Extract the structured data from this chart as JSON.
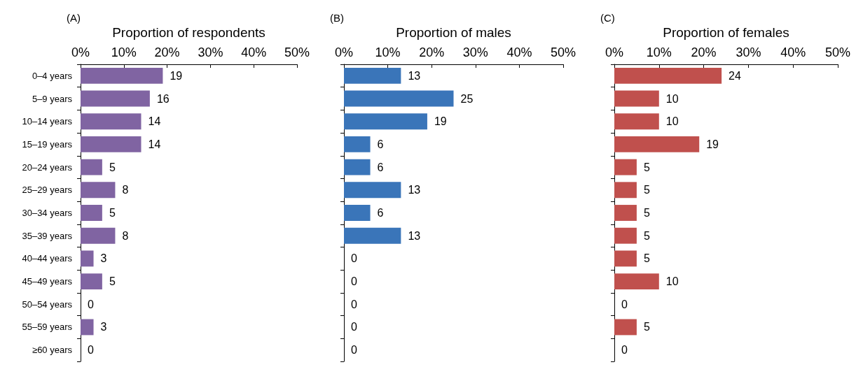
{
  "chart_data": [
    {
      "type": "bar",
      "orientation": "horizontal",
      "xlabel": "Proportion of respondents",
      "annotations": [
        "(A)"
      ],
      "categories": [
        "0–4 years",
        "5–9 years",
        "10–14 years",
        "15–19 years",
        "20–24 years",
        "25–29 years",
        "30–34 years",
        "35–39 years",
        "40–44 years",
        "45–49 years",
        "50–54 years",
        "55–59 years",
        "≥60 years"
      ],
      "values": [
        19,
        16,
        14,
        14,
        5,
        8,
        5,
        8,
        3,
        5,
        0,
        3,
        0
      ],
      "color": "#8064a2",
      "data_labels": true,
      "xlim": [
        0,
        50
      ],
      "xticks": [
        {
          "value": 0,
          "label": "0%"
        },
        {
          "value": 10,
          "label": "10%"
        },
        {
          "value": 20,
          "label": "20%"
        },
        {
          "value": 30,
          "label": "30%"
        },
        {
          "value": 40,
          "label": "40%"
        },
        {
          "value": 50,
          "label": "50%"
        }
      ]
    },
    {
      "type": "bar",
      "orientation": "horizontal",
      "xlabel": "Proportion of males",
      "annotations": [
        "(B)"
      ],
      "categories": [
        null,
        null,
        null,
        null,
        null,
        null,
        null,
        null,
        null,
        null,
        null,
        null,
        null
      ],
      "values": [
        13,
        25,
        19,
        6,
        6,
        13,
        6,
        13,
        0,
        0,
        0,
        0,
        0
      ],
      "color": "#3a75b9",
      "data_labels": true,
      "xlim": [
        0,
        50
      ],
      "xticks": [
        {
          "value": 0,
          "label": "0%"
        },
        {
          "value": 10,
          "label": "10%"
        },
        {
          "value": 20,
          "label": "20%"
        },
        {
          "value": 30,
          "label": "30%"
        },
        {
          "value": 40,
          "label": "40%"
        },
        {
          "value": 50,
          "label": "50%"
        }
      ]
    },
    {
      "type": "bar",
      "orientation": "horizontal",
      "xlabel": "Proportion of females",
      "annotations": [
        "(C)"
      ],
      "categories": [
        null,
        null,
        null,
        null,
        null,
        null,
        null,
        null,
        null,
        null,
        null,
        null,
        null
      ],
      "values": [
        24,
        10,
        10,
        19,
        5,
        5,
        5,
        5,
        5,
        10,
        0,
        5,
        0
      ],
      "color": "#c0504d",
      "data_labels": true,
      "xlim": [
        0,
        50
      ],
      "xticks": [
        {
          "value": 0,
          "label": "0%"
        },
        {
          "value": 10,
          "label": "10%"
        },
        {
          "value": 20,
          "label": "20%"
        },
        {
          "value": 30,
          "label": "30%"
        },
        {
          "value": 40,
          "label": "40%"
        },
        {
          "value": 50,
          "label": "50%"
        }
      ]
    }
  ]
}
